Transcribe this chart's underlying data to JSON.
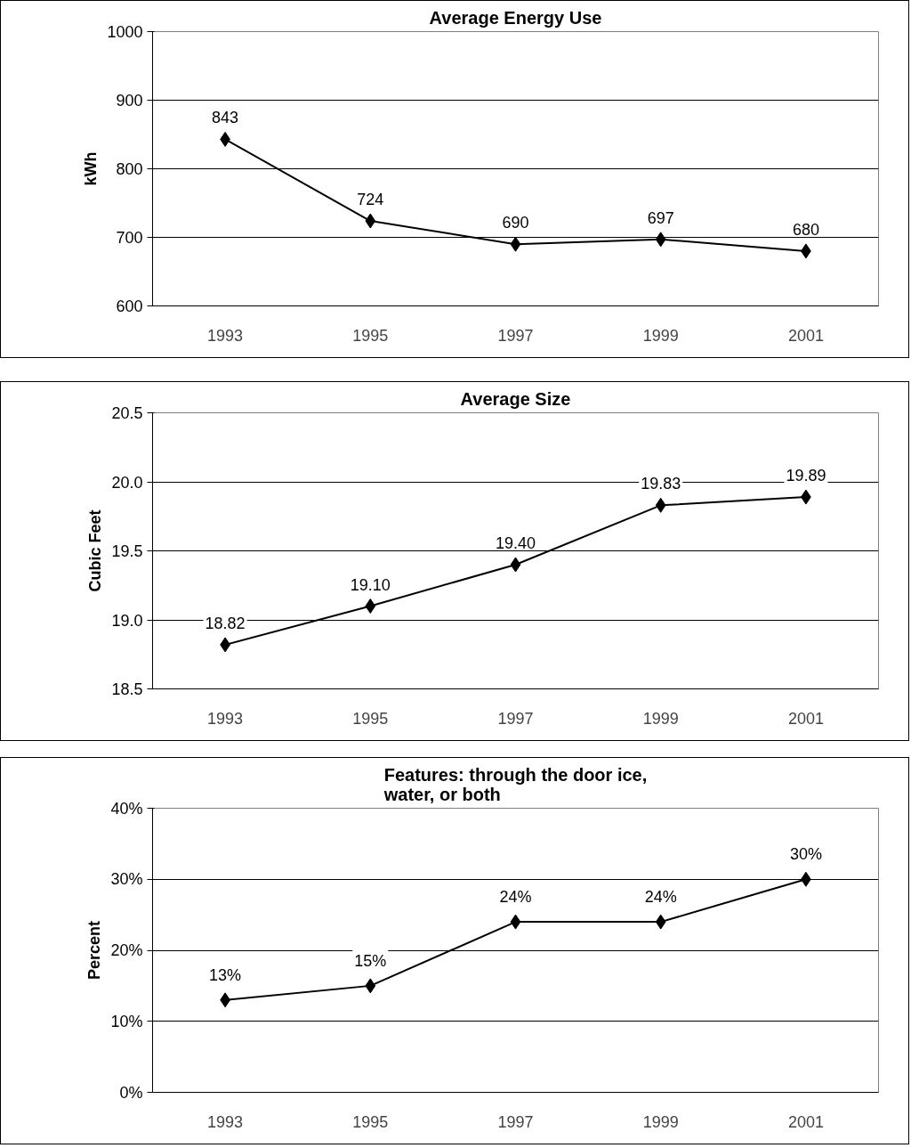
{
  "chart_data": [
    {
      "type": "line",
      "title": "Average Energy Use",
      "ylabel": "kWh",
      "categories": [
        "1993",
        "1995",
        "1997",
        "1999",
        "2001"
      ],
      "series": [
        {
          "color": "#000000",
          "values": [
            843,
            724,
            690,
            697,
            680
          ]
        }
      ],
      "ylim": [
        600,
        1000
      ],
      "yticks": [
        600,
        700,
        800,
        900,
        1000
      ],
      "grid": "y",
      "marker": "diamond",
      "line_style": "solid",
      "data_labels": true
    },
    {
      "type": "line",
      "title": "Average Size",
      "ylabel": "Cubic Feet",
      "categories": [
        "1993",
        "1995",
        "1997",
        "1999",
        "2001"
      ],
      "series": [
        {
          "color": "#000000",
          "values": [
            18.82,
            19.1,
            19.4,
            19.83,
            19.89
          ],
          "value_labels": [
            "18.82",
            "19.10",
            "19.40",
            "19.83",
            "19.89"
          ]
        }
      ],
      "ylim": [
        18.5,
        20.5
      ],
      "yticks": [
        18.5,
        {
          "value": 19,
          "label": "19.0"
        },
        19.5,
        {
          "value": 20,
          "label": "20.0"
        },
        20.5
      ],
      "grid": "y",
      "marker": "diamond",
      "line_style": "solid"
    },
    {
      "type": "line",
      "title": "Features: through the door ice,\nwater, or both",
      "ylabel": "Percent",
      "categories": [
        "1993",
        "1995",
        "1997",
        "1999",
        "2001"
      ],
      "series": [
        {
          "color": "#000000",
          "values": [
            13,
            15,
            24,
            24,
            30
          ],
          "value_labels": [
            "13%",
            "15%",
            "24%",
            "24%",
            "30%"
          ]
        }
      ],
      "ylim": [
        0,
        40
      ],
      "yticks": [
        {
          "value": 0,
          "label": "0%"
        },
        {
          "value": 10,
          "label": "10%"
        },
        {
          "value": 20,
          "label": "20%"
        },
        {
          "value": 30,
          "label": "30%"
        },
        {
          "value": 40,
          "label": "40%"
        }
      ],
      "grid": "y",
      "marker": "diamond",
      "line_style": "solid"
    }
  ]
}
